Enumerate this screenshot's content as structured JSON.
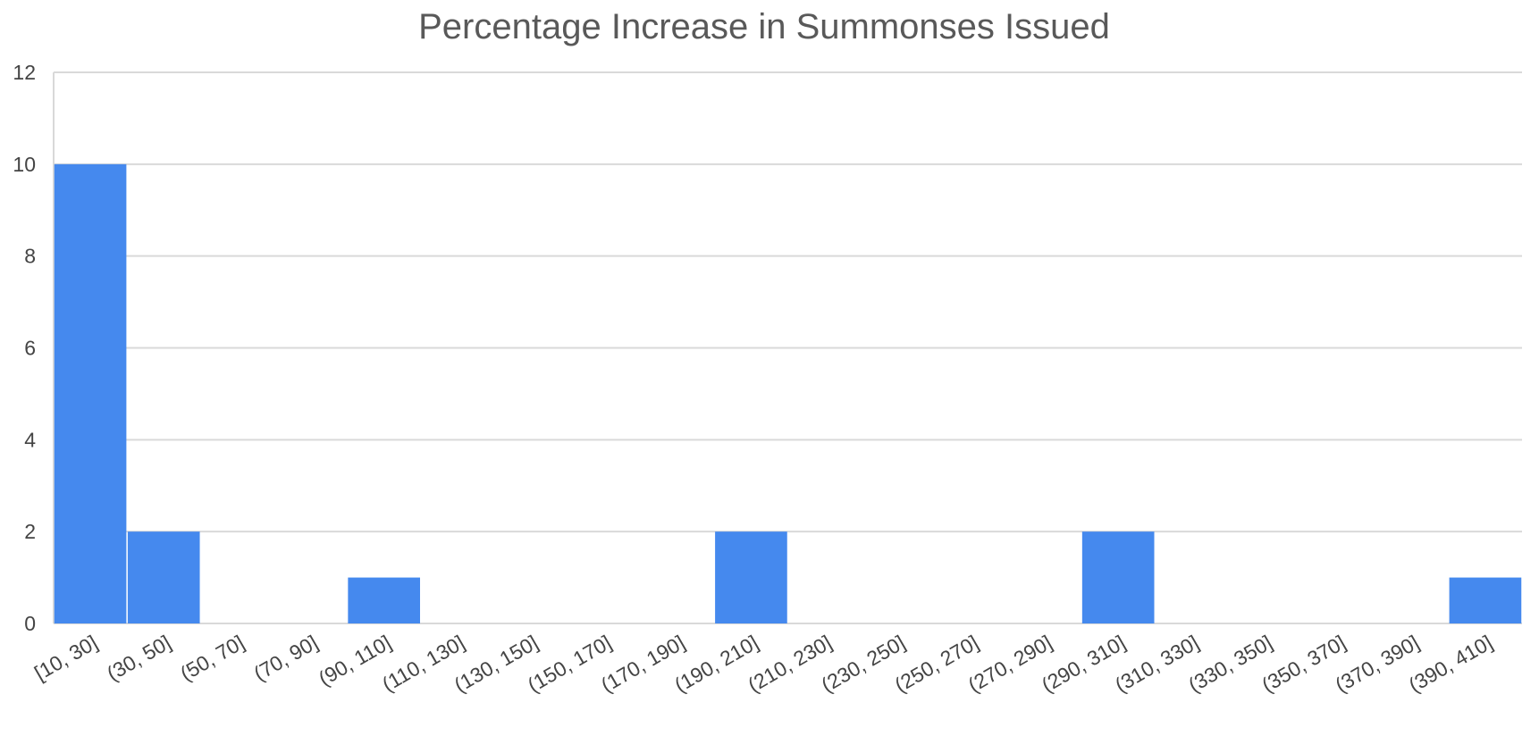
{
  "chart_data": {
    "type": "bar",
    "title": "Percentage Increase in Summonses Issued",
    "xlabel": "",
    "ylabel": "",
    "categories": [
      "[10, 30]",
      "(30, 50]",
      "(50, 70]",
      "(70, 90]",
      "(90, 110]",
      "(110, 130]",
      "(130, 150]",
      "(150, 170]",
      "(170, 190]",
      "(190, 210]",
      "(210, 230]",
      "(230, 250]",
      "(250, 270]",
      "(270, 290]",
      "(290, 310]",
      "(310, 330]",
      "(330, 350]",
      "(350, 370]",
      "(370, 390]",
      "(390, 410]"
    ],
    "values": [
      10,
      2,
      0,
      0,
      1,
      0,
      0,
      0,
      0,
      2,
      0,
      0,
      0,
      0,
      2,
      0,
      0,
      0,
      0,
      1
    ],
    "ylim": [
      0,
      12
    ],
    "yticks": [
      "0",
      "2",
      "4",
      "6",
      "8",
      "10",
      "12"
    ],
    "grid": true,
    "legend": "none",
    "bar_color": "#4589ee"
  }
}
